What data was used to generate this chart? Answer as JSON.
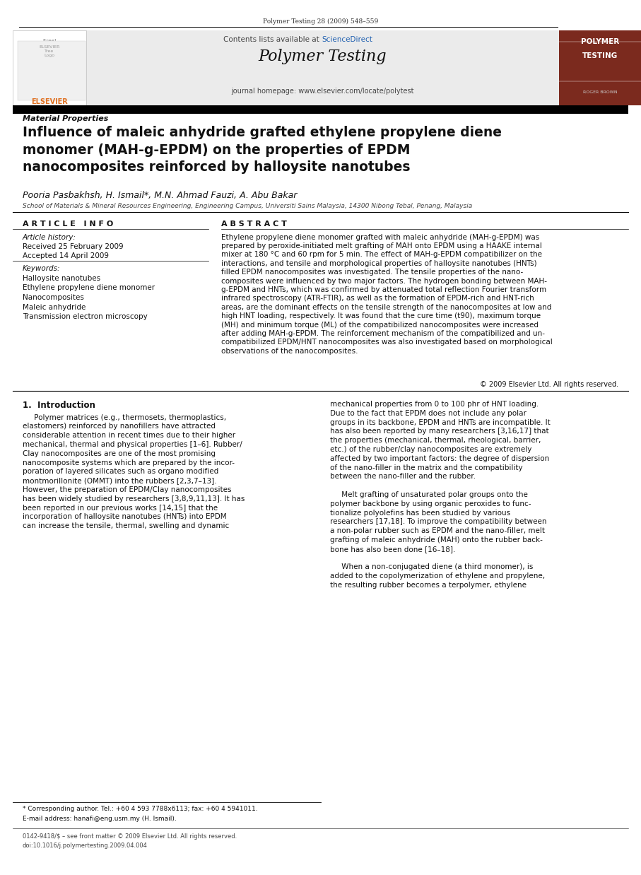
{
  "page_width": 9.07,
  "page_height": 12.38,
  "dpi": 100,
  "bg_color": "#ffffff",
  "header_journal": "Polymer Testing 28 (2009) 548–559",
  "banner_bg": "#ebebeb",
  "banner_sciencedirect_pre": "Contents lists available at ",
  "banner_sciencedirect": "ScienceDirect",
  "banner_journal_title": "Polymer Testing",
  "banner_homepage": "journal homepage: www.elsevier.com/locate/polytest",
  "sidebar_bg": "#7b2a1e",
  "sidebar_text1": "POLYMER",
  "sidebar_text2": "TESTING",
  "sidebar_subtext": "ROGER BROWN",
  "section_label": "Material Properties",
  "article_title": "Influence of maleic anhydride grafted ethylene propylene diene\nmonomer (MAH-g-EPDM) on the properties of EPDM\nnanocomposites reinforced by halloysite nanotubes",
  "authors": "Pooria Pasbakhsh, H. Ismail*, M.N. Ahmad Fauzi, A. Abu Bakar",
  "affiliation": "School of Materials & Mineral Resources Engineering, Engineering Campus, Universiti Sains Malaysia, 14300 Nibong Tebal, Penang, Malaysia",
  "article_info_title": "A R T I C L E   I N F O",
  "article_history_label": "Article history:",
  "received": "Received 25 February 2009",
  "accepted": "Accepted 14 April 2009",
  "keywords_label": "Keywords:",
  "keywords": [
    "Halloysite nanotubes",
    "Ethylene propylene diene monomer",
    "Nanocomposites",
    "Maleic anhydride",
    "Transmission electron microscopy"
  ],
  "abstract_title": "A B S T R A C T",
  "abstract_text": "Ethylene propylene diene monomer grafted with maleic anhydride (MAH-g-EPDM) was\nprepared by peroxide-initiated melt grafting of MAH onto EPDM using a HAAKE internal\nmixer at 180 °C and 60 rpm for 5 min. The effect of MAH-g-EPDM compatibilizer on the\ninteractions, and tensile and morphological properties of halloysite nanotubes (HNTs)\nfilled EPDM nanocomposites was investigated. The tensile properties of the nano-\ncomposites were influenced by two major factors. The hydrogen bonding between MAH-\ng-EPDM and HNTs, which was confirmed by attenuated total reflection Fourier transform\ninfrared spectroscopy (ATR-FTIR), as well as the formation of EPDM-rich and HNT-rich\nareas, are the dominant effects on the tensile strength of the nanocomposites at low and\nhigh HNT loading, respectively. It was found that the cure time (t90), maximum torque\n(MH) and minimum torque (ML) of the compatibilized nanocomposites were increased\nafter adding MAH-g-EPDM. The reinforcement mechanism of the compatibilized and un-\ncompatibilized EPDM/HNT nanocomposites was also investigated based on morphological\nobservations of the nanocomposites.",
  "copyright": "© 2009 Elsevier Ltd. All rights reserved.",
  "intro_title": "1.  Introduction",
  "intro_left_para": "     Polymer matrices (e.g., thermosets, thermoplastics,\nelastomers) reinforced by nanofillers have attracted\nconsiderable attention in recent times due to their higher\nmechanical, thermal and physical properties [1–6]. Rubber/\nClay nanocomposites are one of the most promising\nnanocomposite systems which are prepared by the incor-\nporation of layered silicates such as organo modified\nmontmorillonite (OMMT) into the rubbers [2,3,7–13].\nHowever, the preparation of EPDM/Clay nanocomposites\nhas been widely studied by researchers [3,8,9,11,13]. It has\nbeen reported in our previous works [14,15] that the\nincorporation of halloysite nanotubes (HNTs) into EPDM\ncan increase the tensile, thermal, swelling and dynamic",
  "intro_right_para": "mechanical properties from 0 to 100 phr of HNT loading.\nDue to the fact that EPDM does not include any polar\ngroups in its backbone, EPDM and HNTs are incompatible. It\nhas also been reported by many researchers [3,16,17] that\nthe properties (mechanical, thermal, rheological, barrier,\netc.) of the rubber/clay nanocomposites are extremely\naffected by two important factors: the degree of dispersion\nof the nano-filler in the matrix and the compatibility\nbetween the nano-filler and the rubber.\n\n     Melt grafting of unsaturated polar groups onto the\npolymer backbone by using organic peroxides to func-\ntionalize polyolefins has been studied by various\nresearchers [17,18]. To improve the compatibility between\na non-polar rubber such as EPDM and the nano-filler, melt\ngrafting of maleic anhydride (MAH) onto the rubber back-\nbone has also been done [16–18].\n\n     When a non-conjugated diene (a third monomer), is\nadded to the copolymerization of ethylene and propylene,\nthe resulting rubber becomes a terpolymer, ethylene",
  "footnote_star": "* Corresponding author. Tel.: +60 4 593 7788x6113; fax: +60 4 5941011.",
  "footnote_email": "E-mail address: hanafi@eng.usm.my (H. Ismail).",
  "footer_left": "0142-9418/$ – see front matter © 2009 Elsevier Ltd. All rights reserved.",
  "footer_doi": "doi:10.1016/j.polymertesting.2009.04.004"
}
